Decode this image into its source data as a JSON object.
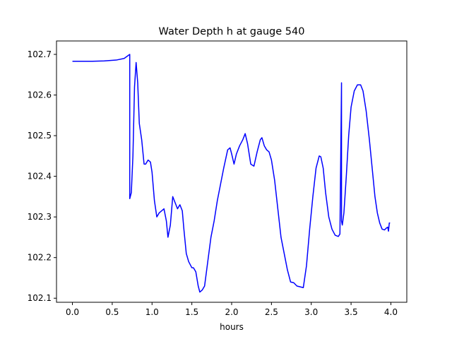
{
  "chart_data": {
    "type": "line",
    "title": "Water Depth h at gauge 540",
    "xlabel": "hours",
    "ylabel": "",
    "xlim": [
      -0.2,
      4.2
    ],
    "ylim": [
      102.09,
      102.733
    ],
    "xticks": [
      0.0,
      0.5,
      1.0,
      1.5,
      2.0,
      2.5,
      3.0,
      3.5,
      4.0
    ],
    "xtick_labels": [
      "0.0",
      "0.5",
      "1.0",
      "1.5",
      "2.0",
      "2.5",
      "3.0",
      "3.5",
      "4.0"
    ],
    "yticks": [
      102.1,
      102.2,
      102.3,
      102.4,
      102.5,
      102.6,
      102.7
    ],
    "ytick_labels": [
      "102.1",
      "102.2",
      "102.3",
      "102.4",
      "102.5",
      "102.6",
      "102.7"
    ],
    "grid": false,
    "line_color": "#0000ff",
    "series": [
      {
        "name": "",
        "x": [
          0.0,
          0.25,
          0.4,
          0.55,
          0.65,
          0.72,
          0.72,
          0.74,
          0.76,
          0.78,
          0.8,
          0.82,
          0.84,
          0.87,
          0.9,
          0.92,
          0.95,
          0.98,
          1.0,
          1.03,
          1.06,
          1.09,
          1.12,
          1.15,
          1.18,
          1.2,
          1.23,
          1.26,
          1.29,
          1.32,
          1.35,
          1.38,
          1.4,
          1.43,
          1.46,
          1.5,
          1.52,
          1.55,
          1.58,
          1.6,
          1.63,
          1.66,
          1.7,
          1.74,
          1.78,
          1.82,
          1.86,
          1.9,
          1.95,
          1.98,
          2.0,
          2.03,
          2.06,
          2.1,
          2.14,
          2.17,
          2.2,
          2.24,
          2.28,
          2.32,
          2.36,
          2.38,
          2.41,
          2.44,
          2.47,
          2.5,
          2.54,
          2.58,
          2.62,
          2.66,
          2.7,
          2.74,
          2.78,
          2.82,
          2.86,
          2.9,
          2.94,
          2.98,
          3.02,
          3.06,
          3.1,
          3.12,
          3.15,
          3.18,
          3.22,
          3.26,
          3.3,
          3.34,
          3.36,
          3.38,
          3.38,
          3.39,
          3.41,
          3.44,
          3.47,
          3.5,
          3.54,
          3.58,
          3.62,
          3.65,
          3.69,
          3.73,
          3.77,
          3.8,
          3.83,
          3.86,
          3.89,
          3.92,
          3.94,
          3.96,
          3.97,
          3.98,
          3.99
        ],
        "y": [
          102.683,
          102.683,
          102.684,
          102.686,
          102.69,
          102.7,
          102.345,
          102.36,
          102.45,
          102.62,
          102.68,
          102.63,
          102.53,
          102.49,
          102.43,
          102.43,
          102.44,
          102.435,
          102.41,
          102.34,
          102.3,
          102.31,
          102.315,
          102.32,
          102.29,
          102.25,
          102.28,
          102.35,
          102.335,
          102.32,
          102.33,
          102.315,
          102.27,
          102.21,
          102.19,
          102.175,
          102.175,
          102.165,
          102.13,
          102.115,
          102.12,
          102.13,
          102.19,
          102.25,
          102.29,
          102.34,
          102.38,
          102.42,
          102.465,
          102.47,
          102.455,
          102.43,
          102.455,
          102.475,
          102.49,
          102.505,
          102.48,
          102.43,
          102.425,
          102.46,
          102.49,
          102.495,
          102.475,
          102.465,
          102.46,
          102.44,
          102.39,
          102.32,
          102.25,
          102.21,
          102.17,
          102.14,
          102.138,
          102.13,
          102.128,
          102.126,
          102.18,
          102.27,
          102.35,
          102.42,
          102.45,
          102.448,
          102.42,
          102.36,
          102.3,
          102.27,
          102.255,
          102.252,
          102.258,
          102.63,
          102.29,
          102.28,
          102.31,
          102.4,
          102.5,
          102.57,
          102.61,
          102.625,
          102.625,
          102.61,
          102.56,
          102.49,
          102.41,
          102.35,
          102.31,
          102.285,
          102.27,
          102.268,
          102.272,
          102.275,
          102.265,
          102.285,
          102.285
        ]
      }
    ]
  }
}
